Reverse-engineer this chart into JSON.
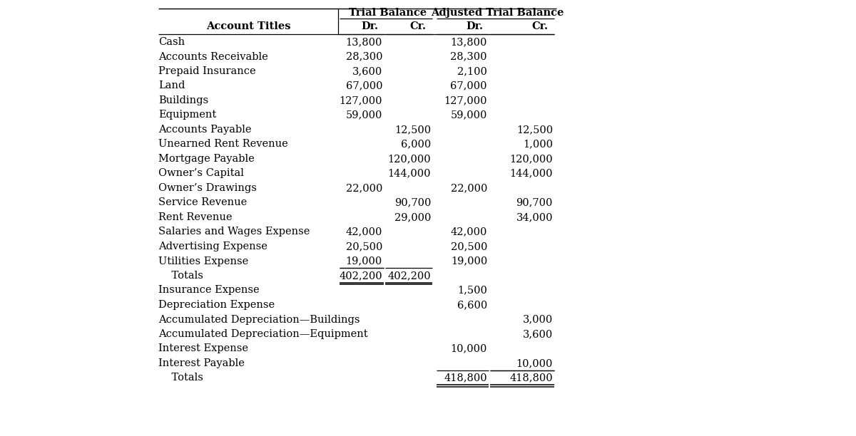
{
  "title1": "Trial Balance",
  "title2": "Adjusted Trial Balance",
  "rows": [
    {
      "account": "Cash",
      "tb_dr": "13,800",
      "tb_cr": "",
      "atb_dr": "13,800",
      "atb_cr": ""
    },
    {
      "account": "Accounts Receivable",
      "tb_dr": "28,300",
      "tb_cr": "",
      "atb_dr": "28,300",
      "atb_cr": ""
    },
    {
      "account": "Prepaid Insurance",
      "tb_dr": "3,600",
      "tb_cr": "",
      "atb_dr": "2,100",
      "atb_cr": ""
    },
    {
      "account": "Land",
      "tb_dr": "67,000",
      "tb_cr": "",
      "atb_dr": "67,000",
      "atb_cr": ""
    },
    {
      "account": "Buildings",
      "tb_dr": "127,000",
      "tb_cr": "",
      "atb_dr": "127,000",
      "atb_cr": ""
    },
    {
      "account": "Equipment",
      "tb_dr": "59,000",
      "tb_cr": "",
      "atb_dr": "59,000",
      "atb_cr": ""
    },
    {
      "account": "Accounts Payable",
      "tb_dr": "",
      "tb_cr": "12,500",
      "atb_dr": "",
      "atb_cr": "12,500"
    },
    {
      "account": "Unearned Rent Revenue",
      "tb_dr": "",
      "tb_cr": "6,000",
      "atb_dr": "",
      "atb_cr": "1,000"
    },
    {
      "account": "Mortgage Payable",
      "tb_dr": "",
      "tb_cr": "120,000",
      "atb_dr": "",
      "atb_cr": "120,000"
    },
    {
      "account": "Owner’s Capital",
      "tb_dr": "",
      "tb_cr": "144,000",
      "atb_dr": "",
      "atb_cr": "144,000"
    },
    {
      "account": "Owner’s Drawings",
      "tb_dr": "22,000",
      "tb_cr": "",
      "atb_dr": "22,000",
      "atb_cr": ""
    },
    {
      "account": "Service Revenue",
      "tb_dr": "",
      "tb_cr": "90,700",
      "atb_dr": "",
      "atb_cr": "90,700"
    },
    {
      "account": "Rent Revenue",
      "tb_dr": "",
      "tb_cr": "29,000",
      "atb_dr": "",
      "atb_cr": "34,000"
    },
    {
      "account": "Salaries and Wages Expense",
      "tb_dr": "42,000",
      "tb_cr": "",
      "atb_dr": "42,000",
      "atb_cr": ""
    },
    {
      "account": "Advertising Expense",
      "tb_dr": "20,500",
      "tb_cr": "",
      "atb_dr": "20,500",
      "atb_cr": ""
    },
    {
      "account": "Utilities Expense",
      "tb_dr": "19,000",
      "tb_cr": "",
      "atb_dr": "19,000",
      "atb_cr": "",
      "underline_tb": true
    },
    {
      "account": "    Totals",
      "tb_dr": "402,200",
      "tb_cr": "402,200",
      "atb_dr": "",
      "atb_cr": "",
      "is_total1": true
    },
    {
      "account": "Insurance Expense",
      "tb_dr": "",
      "tb_cr": "",
      "atb_dr": "1,500",
      "atb_cr": ""
    },
    {
      "account": "Depreciation Expense",
      "tb_dr": "",
      "tb_cr": "",
      "atb_dr": "6,600",
      "atb_cr": ""
    },
    {
      "account": "Accumulated Depreciation—Buildings",
      "tb_dr": "",
      "tb_cr": "",
      "atb_dr": "",
      "atb_cr": "3,000"
    },
    {
      "account": "Accumulated Depreciation—Equipment",
      "tb_dr": "",
      "tb_cr": "",
      "atb_dr": "",
      "atb_cr": "3,600"
    },
    {
      "account": "Interest Expense",
      "tb_dr": "",
      "tb_cr": "",
      "atb_dr": "10,000",
      "atb_cr": ""
    },
    {
      "account": "Interest Payable",
      "tb_dr": "",
      "tb_cr": "",
      "atb_dr": "",
      "atb_cr": "10,000",
      "underline_atb": true
    },
    {
      "account": "    Totals",
      "tb_dr": "",
      "tb_cr": "",
      "atb_dr": "418,800",
      "atb_cr": "418,800",
      "is_total2": true
    }
  ],
  "bg_color": "#ffffff",
  "text_color": "#000000",
  "font_size": 10.5,
  "header_font_size": 10.5
}
